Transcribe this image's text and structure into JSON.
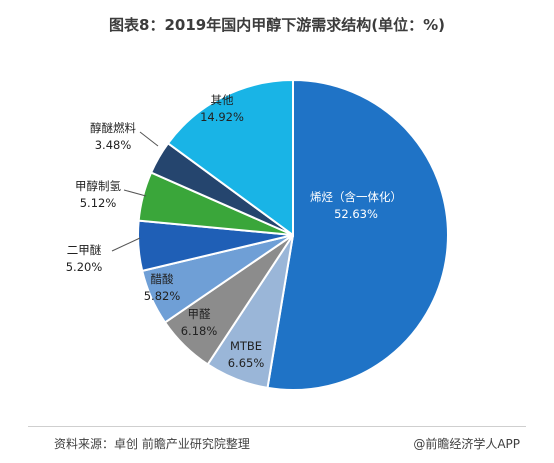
{
  "title": "图表8：2019年国内甲醇下游需求结构(单位：%)",
  "source": "资料来源：卓创 前瞻产业研究院整理",
  "credit": "@前瞻经济学人APP",
  "chart_data": {
    "type": "pie",
    "title": "图表8：2019年国内甲醇下游需求结构(单位：%)",
    "unit": "%",
    "slices": [
      {
        "name": "烯烃（含一体化）",
        "value": 52.63,
        "label": "52.63%",
        "color": "#1f73c6"
      },
      {
        "name": "MTBE",
        "value": 6.65,
        "label": "6.65%",
        "color": "#9ab6d8"
      },
      {
        "name": "甲醛",
        "value": 6.18,
        "label": "6.18%",
        "color": "#8c8c8c"
      },
      {
        "name": "醋酸",
        "value": 5.82,
        "label": "5.82%",
        "color": "#6f9fd6"
      },
      {
        "name": "二甲醚",
        "value": 5.2,
        "label": "5.20%",
        "color": "#1f5fb6"
      },
      {
        "name": "甲醇制氢",
        "value": 5.12,
        "label": "5.12%",
        "color": "#3aa63a"
      },
      {
        "name": "醇醚燃料",
        "value": 3.48,
        "label": "3.48%",
        "color": "#25456e"
      },
      {
        "name": "其他",
        "value": 14.92,
        "label": "14.92%",
        "color": "#19b4e6"
      }
    ]
  }
}
